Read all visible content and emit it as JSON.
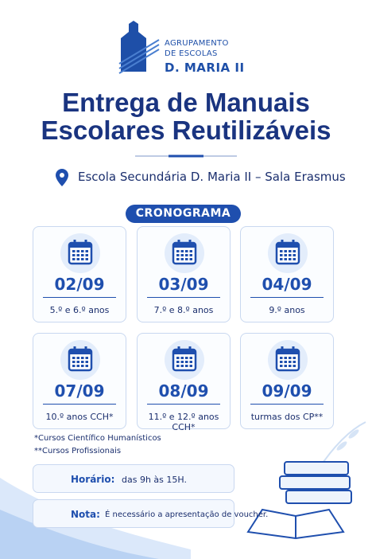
{
  "header": {
    "logo_lines": [
      "AGRUPAMENTO",
      "DE ESCOLAS",
      "D. MARIA II"
    ]
  },
  "title": [
    "Entrega de Manuais",
    "Escolares Reutilizáveis"
  ],
  "location": "Escola Secundária D. Maria II – Sala Erasmus",
  "schedule": {
    "label": "CRONOGRAMA",
    "items": [
      {
        "date": "02/09",
        "years": "5.º e 6.º anos"
      },
      {
        "date": "03/09",
        "years": "7.º e 8.º anos"
      },
      {
        "date": "04/09",
        "years": "9.º anos"
      },
      {
        "date": "07/09",
        "years": "10.º anos CCH*"
      },
      {
        "date": "08/09",
        "years": "11.º e 12.º anos CCH*"
      },
      {
        "date": "09/09",
        "years": "turmas dos CP**"
      }
    ]
  },
  "footnotes": [
    "*Cursos Científico Humanísticos",
    "**Cursos Profissionais"
  ],
  "info": [
    {
      "label": "Horário:",
      "text": "das 9h às 15H."
    },
    {
      "label": "Nota:",
      "text": "É necessário a apresentação de voucher."
    }
  ]
}
